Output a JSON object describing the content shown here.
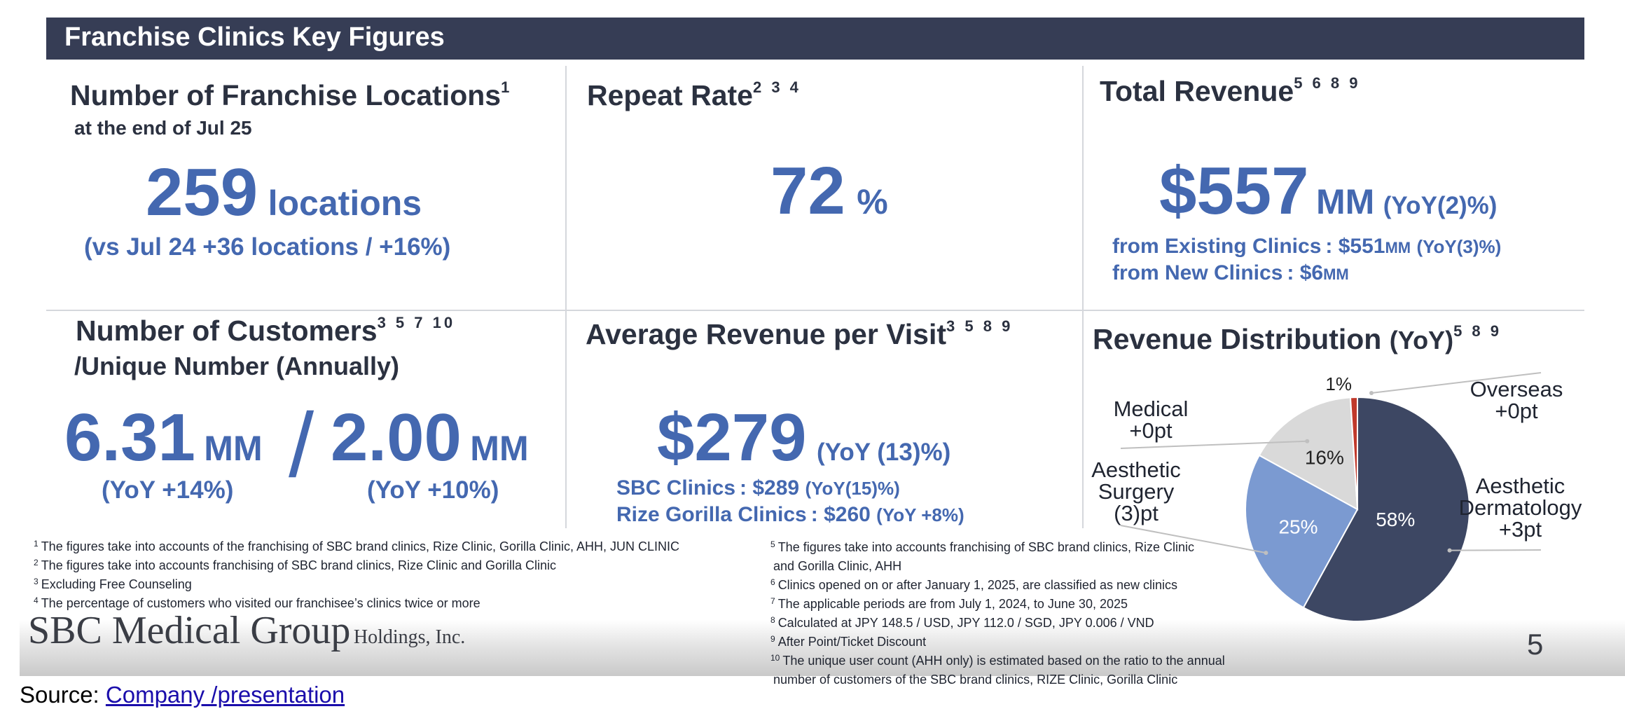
{
  "header": {
    "title": "Franchise Clinics Key Figures"
  },
  "locations": {
    "title": "Number of Franchise Locations",
    "title_sup": "1",
    "subtitle": "at the end of Jul 25",
    "value": "259",
    "unit": "locations",
    "comparison": "(vs Jul 24 +36 locations / +16%)"
  },
  "repeat_rate": {
    "title": "Repeat Rate",
    "title_sup": "2 3 4",
    "value": "72",
    "unit": "%"
  },
  "total_revenue": {
    "title": "Total Revenue",
    "title_sup": "5 6 8 9",
    "value": "$557",
    "unit": "MM",
    "yoy": "(YoY(2)%)",
    "existing_label": "from Existing Clinics : $551",
    "existing_unit": "MM",
    "existing_yoy": "(YoY(3)%)",
    "new_label": "from New Clinics : $6",
    "new_unit": "MM"
  },
  "customers": {
    "title": "Number of Customers",
    "title_sup": "3 5 7 10",
    "subtitle": "/Unique Number (Annually)",
    "value_total": "6.31",
    "unit_total": "MM",
    "separator": "/",
    "value_unique": "2.00",
    "unit_unique": "MM",
    "yoy_total": "(YoY +14%)",
    "yoy_unique": "(YoY +10%)"
  },
  "avg_revenue": {
    "title": "Average Revenue per Visit",
    "title_sup": "3 5 8 9",
    "value": "$279",
    "yoy": "(YoY (13)%)",
    "sbc_label": "SBC Clinics : $289",
    "sbc_yoy": "(YoY(15)%)",
    "rize_label": "Rize Gorilla Clinics : $260",
    "rize_yoy": "(YoY +8%)"
  },
  "revenue_distribution": {
    "title": "Revenue Distribution",
    "title_suffix": "(YoY)",
    "title_sup": "5 8 9"
  },
  "chart_data": {
    "type": "pie",
    "title": "Revenue Distribution (YoY)",
    "slices": [
      {
        "label": "Aesthetic Dermatology",
        "value": 58,
        "display": "58%",
        "yoy": "+3pt",
        "color": "#3d4763"
      },
      {
        "label": "Aesthetic Surgery",
        "value": 25,
        "display": "25%",
        "yoy": "(3)pt",
        "color": "#7b9ad1"
      },
      {
        "label": "Medical",
        "value": 16,
        "display": "16%",
        "yoy": "+0pt",
        "color": "#d9d9d9"
      },
      {
        "label": "Overseas",
        "value": 1,
        "display": "1%",
        "yoy": "+0pt",
        "color": "#c0392b"
      }
    ]
  },
  "pie_labels": {
    "derm": {
      "line1": "Aesthetic",
      "line2": "Dermatology",
      "line3": "+3pt"
    },
    "surgery": {
      "line1": "Aesthetic",
      "line2": "Surgery",
      "line3": "(3)pt"
    },
    "medical": {
      "line1": "Medical",
      "line2": "+0pt"
    },
    "overseas": {
      "line1": "Overseas",
      "line2": "+0pt"
    }
  },
  "footnotes_left": [
    {
      "num": "1",
      "text": "The figures take into accounts of the franchising of SBC brand clinics, Rize Clinic, Gorilla Clinic, AHH, JUN CLINIC"
    },
    {
      "num": "2",
      "text": "The figures take into accounts franchising of SBC brand clinics, Rize Clinic and Gorilla Clinic"
    },
    {
      "num": "3",
      "text": "Excluding Free Counseling"
    },
    {
      "num": "4",
      "text": "The percentage of customers who visited our franchisee’s clinics twice or more"
    }
  ],
  "footnotes_right": [
    {
      "num": "5",
      "text": "The figures take into accounts franchising of SBC brand clinics, Rize Clinic"
    },
    {
      "num": "",
      "text": "and Gorilla Clinic, AHH"
    },
    {
      "num": "6",
      "text": "Clinics opened on or after January 1, 2025, are classified as new clinics"
    },
    {
      "num": "7",
      "text": "The applicable periods are from July 1, 2024, to June 30, 2025"
    },
    {
      "num": "8",
      "text": "Calculated at JPY 148.5 / USD, JPY 112.0 / SGD, JPY 0.006 / VND"
    },
    {
      "num": "9",
      "text": "After Point/Ticket Discount"
    },
    {
      "num": "10",
      "text": "The unique user count (AHH only) is estimated based on the ratio to the annual"
    },
    {
      "num": "",
      "text": "number of customers of the SBC brand clinics, RIZE Clinic, Gorilla Clinic"
    }
  ],
  "footer": {
    "logo_main": "SBC Medical Group",
    "logo_sub": "Holdings, Inc.",
    "page_number": "5"
  },
  "source": {
    "prefix": "Source: ",
    "link_text": "Company /presentation"
  }
}
